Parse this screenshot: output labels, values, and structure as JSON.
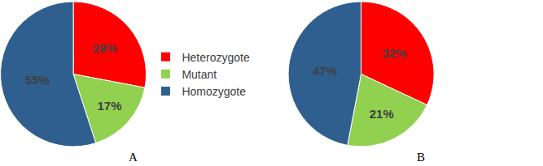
{
  "chart_data": [
    {
      "type": "pie",
      "title": "A",
      "categories": [
        "Heterozygote",
        "Mutant",
        "Homozygote"
      ],
      "values": [
        28,
        17,
        55
      ],
      "value_labels": [
        "28%",
        "17%",
        "55%"
      ],
      "colors": [
        "#ff0000",
        "#92d050",
        "#2f5f8f"
      ],
      "data_labels": true,
      "legend": "right"
    },
    {
      "type": "pie",
      "title": "B",
      "categories": [
        "Heterozygote",
        "Mutant",
        "Homozygote"
      ],
      "values": [
        32,
        21,
        47
      ],
      "value_labels": [
        "32%",
        "21%",
        "47%"
      ],
      "colors": [
        "#ff0000",
        "#92d050",
        "#2f5f8f"
      ],
      "data_labels": true,
      "legend": "right"
    }
  ]
}
